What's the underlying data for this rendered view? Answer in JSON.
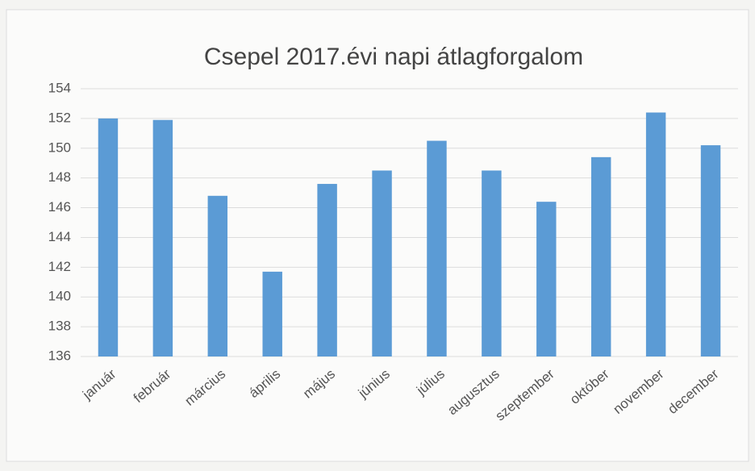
{
  "chart_data": {
    "type": "bar",
    "title": "Csepel 2017.évi napi átlagforgalom",
    "categories": [
      "január",
      "február",
      "március",
      "április",
      "május",
      "június",
      "július",
      "augusztus",
      "szeptember",
      "október",
      "november",
      "december"
    ],
    "values": [
      152,
      151.9,
      146.8,
      141.7,
      147.6,
      148.5,
      150.5,
      148.5,
      146.4,
      149.4,
      152.4,
      150.2
    ],
    "color": "#5b9bd5",
    "ylim": [
      136,
      154
    ],
    "yticks": [
      136,
      138,
      140,
      142,
      144,
      146,
      148,
      150,
      152,
      154
    ],
    "grid": true
  }
}
